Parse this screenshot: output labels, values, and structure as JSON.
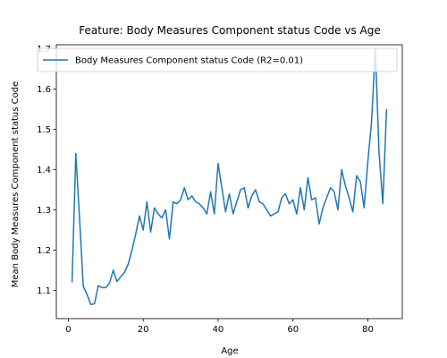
{
  "chart_data": {
    "type": "line",
    "title": "Feature: Body Measures Component status Code vs Age",
    "xlabel": "Age",
    "ylabel": "Mean Body Measures Component status Code",
    "xlim": [
      -3.2,
      89.2
    ],
    "ylim": [
      1.03,
      1.71
    ],
    "xticks": [
      0,
      20,
      40,
      60,
      80
    ],
    "yticks": [
      1.1,
      1.2,
      1.3,
      1.4,
      1.5,
      1.6,
      1.7
    ],
    "xtick_labels": [
      "0",
      "20",
      "40",
      "60",
      "80"
    ],
    "ytick_labels": [
      "1.1",
      "1.2",
      "1.3",
      "1.4",
      "1.5",
      "1.6",
      "1.7"
    ],
    "grid": false,
    "legend_position": "upper right",
    "series": [
      {
        "name": "Body Measures Component status Code (R2=0.01)",
        "color": "#1f77b4",
        "x": [
          1,
          2,
          3,
          4,
          5,
          6,
          7,
          8,
          9,
          10,
          11,
          12,
          13,
          14,
          15,
          16,
          17,
          18,
          19,
          20,
          21,
          22,
          23,
          24,
          25,
          26,
          27,
          28,
          29,
          30,
          31,
          32,
          33,
          34,
          35,
          36,
          37,
          38,
          39,
          40,
          41,
          42,
          43,
          44,
          45,
          46,
          47,
          48,
          49,
          50,
          51,
          52,
          53,
          54,
          55,
          56,
          57,
          58,
          59,
          60,
          61,
          62,
          63,
          64,
          65,
          66,
          67,
          68,
          69,
          70,
          71,
          72,
          73,
          74,
          75,
          76,
          77,
          78,
          79,
          80,
          81,
          82,
          83,
          84,
          85
        ],
        "values": [
          1.12,
          1.44,
          1.28,
          1.11,
          1.09,
          1.065,
          1.067,
          1.112,
          1.107,
          1.107,
          1.118,
          1.15,
          1.122,
          1.134,
          1.145,
          1.165,
          1.2,
          1.24,
          1.285,
          1.25,
          1.32,
          1.245,
          1.305,
          1.29,
          1.28,
          1.3,
          1.228,
          1.32,
          1.315,
          1.325,
          1.355,
          1.325,
          1.335,
          1.32,
          1.315,
          1.305,
          1.29,
          1.345,
          1.29,
          1.415,
          1.355,
          1.295,
          1.34,
          1.29,
          1.32,
          1.35,
          1.355,
          1.305,
          1.335,
          1.35,
          1.32,
          1.315,
          1.3,
          1.285,
          1.29,
          1.295,
          1.33,
          1.34,
          1.315,
          1.325,
          1.29,
          1.355,
          1.3,
          1.38,
          1.325,
          1.33,
          1.265,
          1.305,
          1.33,
          1.355,
          1.345,
          1.3,
          1.4,
          1.36,
          1.33,
          1.295,
          1.385,
          1.37,
          1.305,
          1.42,
          1.52,
          1.7,
          1.44,
          1.315,
          1.55
        ]
      }
    ]
  }
}
